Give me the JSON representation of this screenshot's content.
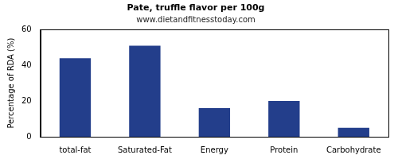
{
  "chart_data": {
    "type": "bar",
    "title": "Pate, truffle flavor per 100g",
    "subtitle": "www.dietandfitnesstoday.com",
    "y_label": "Percentage of RDA (%)",
    "categories": [
      "total-fat",
      "Saturated-Fat",
      "Energy",
      "Protein",
      "Carbohydrate"
    ],
    "values": [
      44,
      51,
      16,
      20,
      5
    ],
    "color": "#233e8b",
    "ylim": [
      0,
      60
    ],
    "yticks": [
      0,
      20,
      40,
      60
    ],
    "grid": false
  }
}
